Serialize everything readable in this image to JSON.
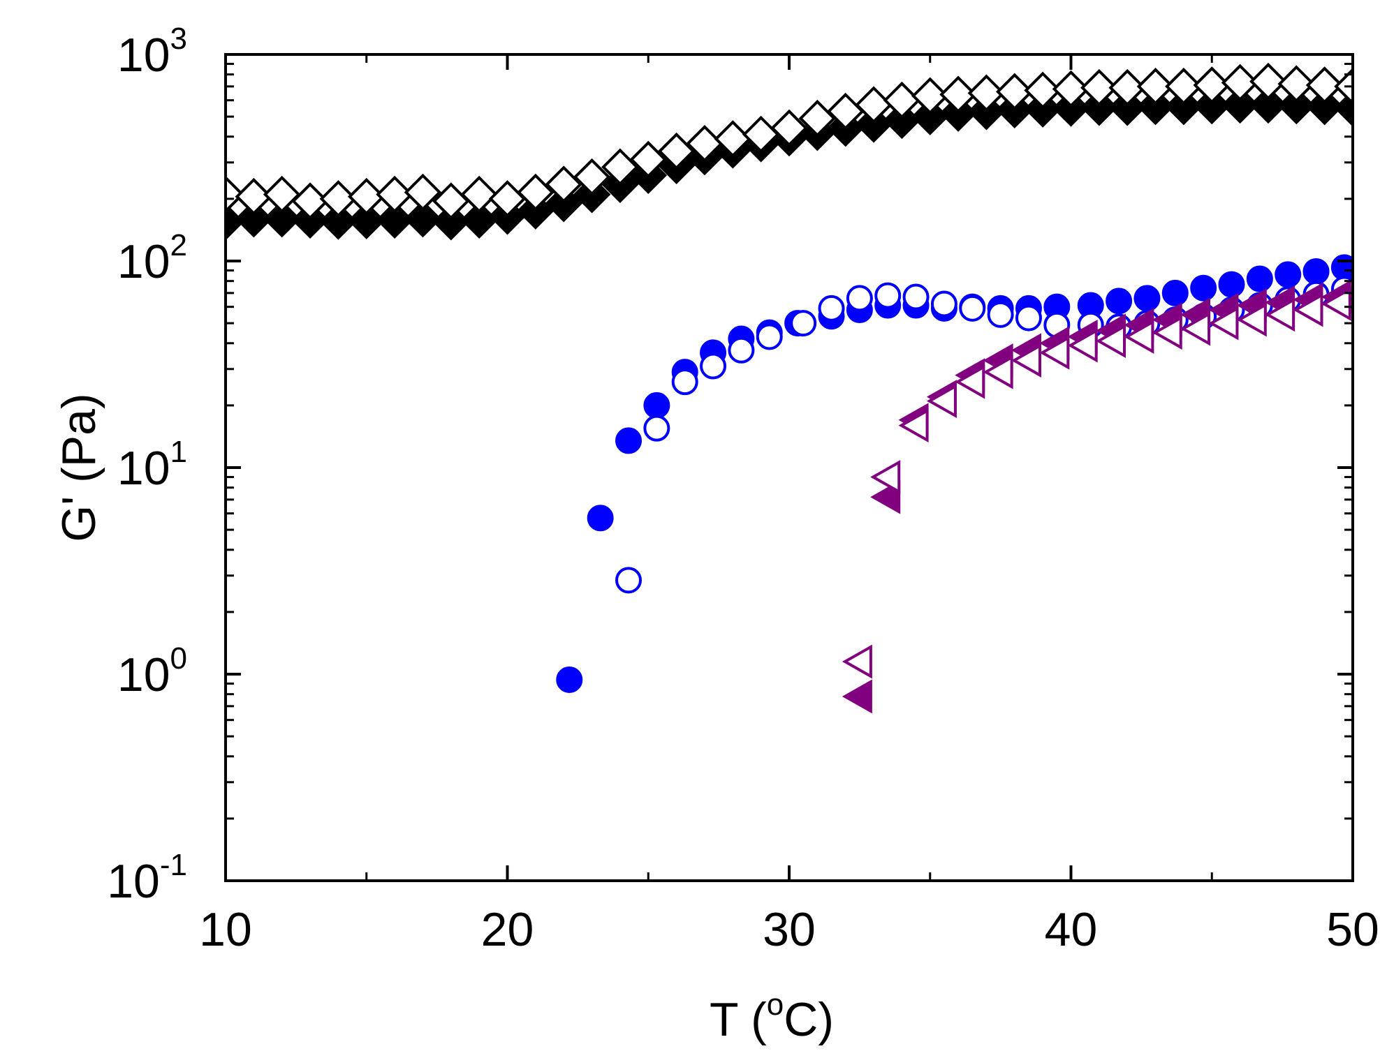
{
  "chart_data": {
    "type": "scatter",
    "xlabel": "T (°C)",
    "xlabel_main": "T (",
    "xlabel_sup": "o",
    "xlabel_end": "C)",
    "ylabel": "G' (Pa)",
    "xlim": [
      10,
      50
    ],
    "ylim": [
      0.1,
      1000
    ],
    "yscale": "log",
    "xticks": [
      {
        "value": 10,
        "label": "10"
      },
      {
        "value": 20,
        "label": "20"
      },
      {
        "value": 30,
        "label": "30"
      },
      {
        "value": 40,
        "label": "40"
      },
      {
        "value": 50,
        "label": "50"
      }
    ],
    "yticks": [
      {
        "value": 0.1,
        "base": "10",
        "exp": "-1"
      },
      {
        "value": 1,
        "base": "10",
        "exp": "0"
      },
      {
        "value": 10,
        "base": "10",
        "exp": "1"
      },
      {
        "value": 100,
        "base": "10",
        "exp": "2"
      },
      {
        "value": 1000,
        "base": "10",
        "exp": "3"
      }
    ],
    "legend": "none",
    "grid": false,
    "series": [
      {
        "marker": "diamond",
        "filled": false,
        "color": "#000000",
        "x": [
          10,
          11,
          12,
          13,
          14,
          15,
          16,
          17,
          18,
          19,
          20,
          21,
          22,
          23,
          24,
          25,
          26,
          27,
          28,
          29,
          30,
          31,
          32,
          33,
          34,
          35,
          36,
          37,
          38,
          39,
          40,
          41,
          42,
          43,
          44,
          45,
          46,
          47,
          48,
          49,
          50
        ],
        "y": [
          210,
          205,
          210,
          195,
          200,
          205,
          210,
          215,
          195,
          210,
          200,
          215,
          235,
          255,
          285,
          310,
          340,
          370,
          390,
          410,
          440,
          490,
          530,
          570,
          600,
          630,
          640,
          650,
          660,
          670,
          680,
          690,
          690,
          700,
          700,
          710,
          730,
          740,
          720,
          710,
          700
        ]
      },
      {
        "marker": "diamond",
        "filled": true,
        "color": "#000000",
        "x": [
          10,
          11,
          12,
          13,
          14,
          15,
          16,
          17,
          18,
          19,
          20,
          21,
          22,
          23,
          24,
          25,
          26,
          27,
          28,
          29,
          30,
          31,
          32,
          33,
          34,
          35,
          36,
          37,
          38,
          39,
          40,
          41,
          42,
          43,
          44,
          45,
          46,
          47,
          48,
          49,
          50
        ],
        "y": [
          155,
          160,
          160,
          158,
          156,
          157,
          158,
          160,
          155,
          158,
          165,
          175,
          190,
          210,
          235,
          260,
          290,
          320,
          345,
          370,
          395,
          420,
          440,
          460,
          480,
          500,
          520,
          530,
          540,
          545,
          550,
          555,
          555,
          560,
          560,
          565,
          570,
          570,
          565,
          560,
          550
        ]
      },
      {
        "marker": "circle",
        "filled": true,
        "color": "#0000ff",
        "x": [
          22.2,
          23.3,
          24.3,
          25.3,
          26.3,
          27.3,
          28.3,
          29.3,
          30.3,
          31.5,
          32.5,
          33.5,
          34.5,
          35.5,
          36.5,
          37.5,
          38.5,
          39.5,
          40.7,
          41.7,
          42.7,
          43.7,
          44.7,
          45.7,
          46.7,
          47.7,
          48.7,
          49.7
        ],
        "y": [
          0.94,
          5.7,
          13.5,
          20,
          29,
          36,
          42,
          45,
          50,
          54,
          58,
          61,
          61,
          59,
          60,
          59,
          59,
          60,
          61,
          64,
          66,
          70,
          74,
          77,
          82,
          86,
          89,
          93
        ]
      },
      {
        "marker": "circle",
        "filled": false,
        "color": "#0000ff",
        "x": [
          24.3,
          25.3,
          26.3,
          27.3,
          28.3,
          29.3,
          30.5,
          31.5,
          32.5,
          33.5,
          34.5,
          35.5,
          36.5,
          37.5,
          38.5,
          39.5,
          40.7,
          41.7,
          42.7,
          43.7,
          44.7,
          45.7,
          46.7,
          47.7,
          48.7,
          49.7
        ],
        "y": [
          2.85,
          15.5,
          26,
          31,
          37,
          43,
          50,
          59,
          66,
          68,
          67,
          62,
          59,
          55,
          53,
          49,
          49,
          48,
          50,
          52,
          54,
          58,
          61,
          65,
          69,
          73
        ]
      },
      {
        "marker": "triangle-left",
        "filled": true,
        "color": "#800080",
        "x": [
          32.5,
          33.5,
          34.5,
          35.5,
          36.5,
          37.5,
          38.5,
          39.5,
          40.5,
          41.5,
          42.5,
          43.5,
          44.5,
          45.5,
          46.5,
          47.5,
          48.5,
          49.5
        ],
        "y": [
          0.78,
          7.2,
          17,
          22,
          28,
          33,
          37,
          40,
          43,
          46,
          49,
          52,
          55,
          58,
          61,
          63,
          65,
          67
        ]
      },
      {
        "marker": "triangle-left",
        "filled": false,
        "color": "#800080",
        "x": [
          32.5,
          33.5,
          34.5,
          35.5,
          36.5,
          37.5,
          38.5,
          39.5,
          40.5,
          41.5,
          42.5,
          43.5,
          44.5,
          45.5,
          46.5,
          47.5,
          48.5,
          49.5
        ],
        "y": [
          1.15,
          9,
          16,
          21,
          26,
          29,
          33,
          36,
          39,
          41,
          43,
          45,
          47,
          50,
          52,
          55,
          58,
          62
        ]
      }
    ]
  }
}
